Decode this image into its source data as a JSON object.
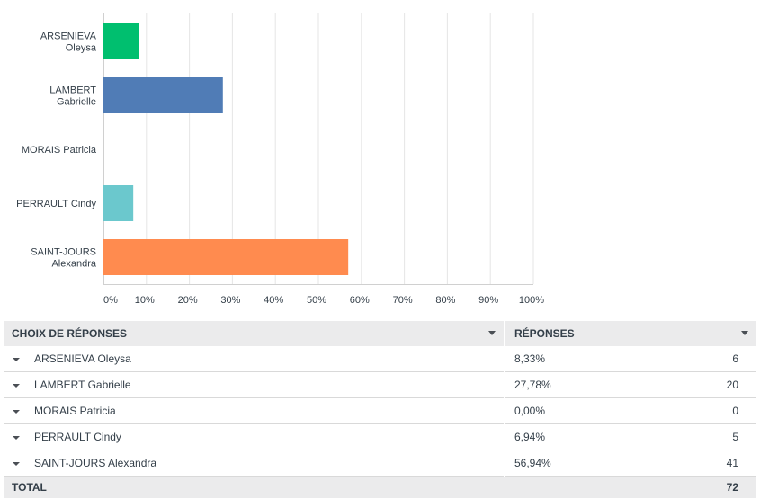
{
  "chart_data": {
    "type": "bar",
    "orientation": "horizontal",
    "categories": [
      [
        "ARSENIEVA",
        "Oleysa"
      ],
      [
        "LAMBERT",
        "Gabrielle"
      ],
      [
        "MORAIS Patricia"
      ],
      [
        "PERRAULT Cindy"
      ],
      [
        "SAINT-JOURS",
        "Alexandra"
      ]
    ],
    "values": [
      8.33,
      27.78,
      0.0,
      6.94,
      56.94
    ],
    "colors": [
      "#00bf6f",
      "#507cb6",
      "#f9be00",
      "#6bc8cd",
      "#ff8b4f"
    ],
    "xlim": [
      0,
      100
    ],
    "x_ticks": [
      "0%",
      "10%",
      "20%",
      "30%",
      "40%",
      "50%",
      "60%",
      "70%",
      "80%",
      "90%",
      "100%"
    ],
    "grid": true,
    "legend": "none"
  },
  "table": {
    "headers": {
      "choice": "CHOIX DE RÉPONSES",
      "responses": "RÉPONSES"
    },
    "rows": [
      {
        "label": "ARSENIEVA Oleysa",
        "pct": "8,33%",
        "count": "6"
      },
      {
        "label": "LAMBERT Gabrielle",
        "pct": "27,78%",
        "count": "20"
      },
      {
        "label": "MORAIS Patricia",
        "pct": "0,00%",
        "count": "0"
      },
      {
        "label": "PERRAULT Cindy",
        "pct": "6,94%",
        "count": "5"
      },
      {
        "label": "SAINT-JOURS Alexandra",
        "pct": "56,94%",
        "count": "41"
      }
    ],
    "total_label": "TOTAL",
    "total_count": "72"
  }
}
